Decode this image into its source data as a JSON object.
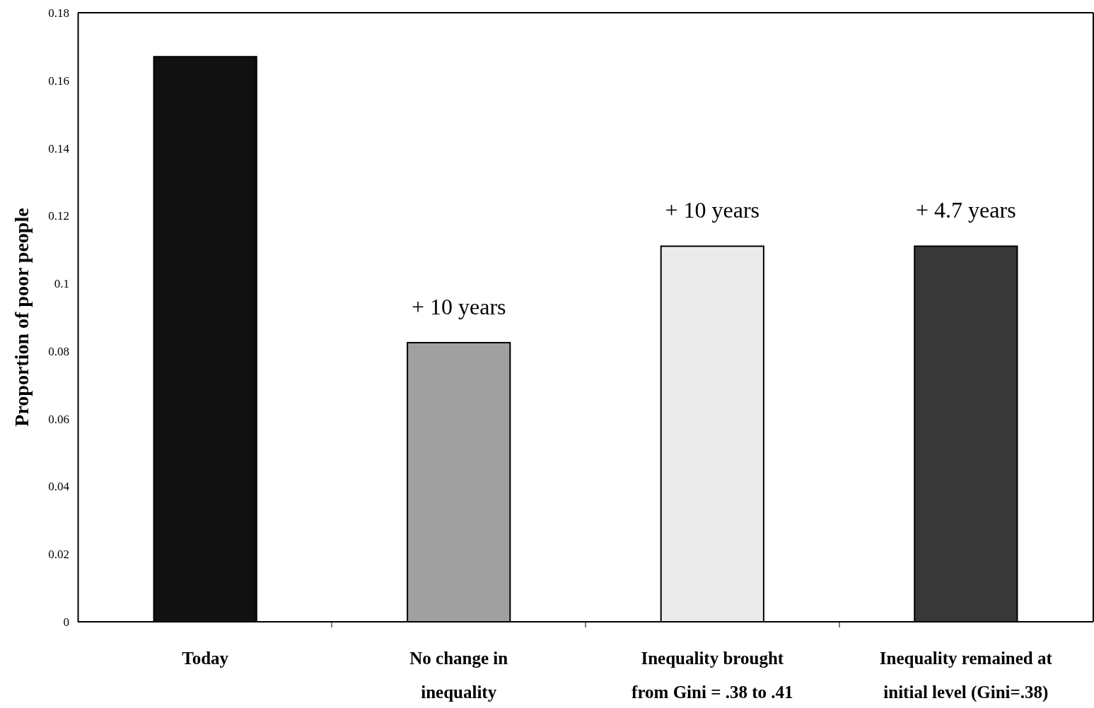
{
  "chart_data": {
    "type": "bar",
    "ylabel": "Proportion of poor people",
    "categories": [
      "Today",
      "No change in inequality",
      "Inequality brought from Gini = .38 to .41",
      "Inequality remained at initial level (Gini=.38)"
    ],
    "values": [
      0.167,
      0.0825,
      0.111,
      0.111
    ],
    "colors": [
      "#111111",
      "#a0a0a0",
      "#ebebeb",
      "#383838"
    ],
    "ylim": [
      0,
      0.18
    ],
    "yticks": [
      0,
      0.02,
      0.04,
      0.06,
      0.08,
      0.1,
      0.12,
      0.14,
      0.16,
      0.18
    ],
    "grid": false,
    "annotations": [
      {
        "text": "+ 10 years",
        "x": "No change in inequality",
        "y": 0.0825
      },
      {
        "text": "+ 10 years",
        "x": "Inequality brought from Gini = .38 to .41",
        "y": 0.111
      },
      {
        "text": "+ 4.7 years",
        "x": "Inequality remained at initial level (Gini=.38)",
        "y": 0.111
      }
    ]
  }
}
